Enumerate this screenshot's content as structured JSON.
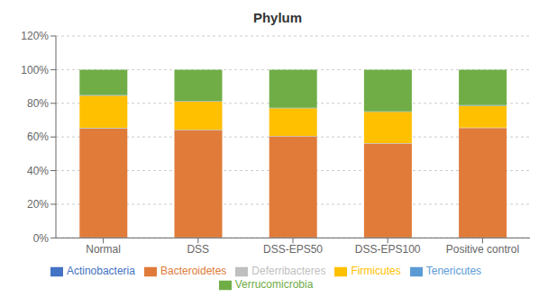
{
  "chart_data": {
    "type": "bar",
    "title": "Phylum",
    "categories": [
      "Normal",
      "DSS",
      "DSS-EPS50",
      "DSS-EPS100",
      "Positive control"
    ],
    "series": [
      {
        "name": "Actinobacteria",
        "color": "#4472c4",
        "values": [
          0.003,
          0.003,
          0.003,
          0.003,
          0.003
        ]
      },
      {
        "name": "Bacteroidetes",
        "color": "#e07b39",
        "values": [
          0.648,
          0.638,
          0.6,
          0.558,
          0.65
        ]
      },
      {
        "name": "Deferribacteres",
        "color": "#bfbfbf",
        "values": [
          0.003,
          0.003,
          0.003,
          0.003,
          0.003
        ]
      },
      {
        "name": "Firmicutes",
        "color": "#ffc000",
        "values": [
          0.192,
          0.168,
          0.165,
          0.185,
          0.13
        ]
      },
      {
        "name": "Tenericutes",
        "color": "#5b9bd5",
        "values": [
          0.003,
          0.003,
          0.003,
          0.003,
          0.003
        ]
      },
      {
        "name": "Verrucomicrobia",
        "color": "#70ad47",
        "values": [
          0.151,
          0.185,
          0.226,
          0.248,
          0.211
        ]
      }
    ],
    "stacked": true,
    "ylim": [
      0,
      1.2
    ],
    "yticks": [
      {
        "value": 0,
        "label": "0%"
      },
      {
        "value": 0.2,
        "label": "20%"
      },
      {
        "value": 0.4,
        "label": "40%"
      },
      {
        "value": 0.6,
        "label": "60%"
      },
      {
        "value": 0.8,
        "label": "80%"
      },
      {
        "value": 1.0,
        "label": "100%"
      },
      {
        "value": 1.2,
        "label": "120%"
      }
    ],
    "grid": true,
    "legend": "bottom"
  }
}
